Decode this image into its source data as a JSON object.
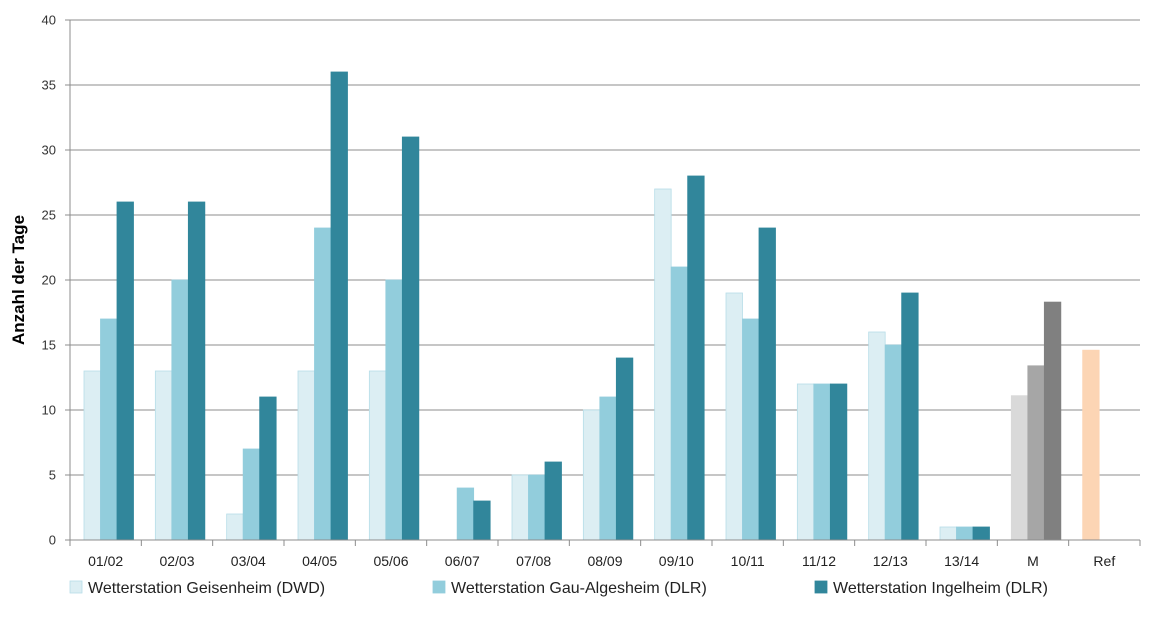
{
  "chart_data": {
    "type": "bar",
    "ylabel": "Anzahl der Tage",
    "xlabel": "",
    "ylim": [
      0,
      40
    ],
    "yticks": [
      0,
      5,
      10,
      15,
      20,
      25,
      30,
      35,
      40
    ],
    "grid": true,
    "legend_position": "bottom",
    "categories": [
      "01/02",
      "02/03",
      "03/04",
      "04/05",
      "05/06",
      "06/07",
      "07/08",
      "08/09",
      "09/10",
      "10/11",
      "11/12",
      "12/13",
      "13/14",
      "M",
      "Ref"
    ],
    "series": [
      {
        "name": "Wetterstation Geisenheim (DWD)",
        "color": "#dceef3",
        "values": [
          13,
          13,
          2,
          13,
          13,
          0,
          5,
          10,
          27,
          19,
          12,
          16,
          1,
          null,
          null
        ]
      },
      {
        "name": "Wetterstation Gau-Algesheim (DLR)",
        "color": "#92cddc",
        "values": [
          17,
          20,
          7,
          24,
          20,
          4,
          5,
          11,
          21,
          17,
          12,
          15,
          1,
          null,
          null
        ]
      },
      {
        "name": "Wetterstation Ingelheim (DLR)",
        "color": "#31869b",
        "values": [
          26,
          26,
          11,
          36,
          31,
          3,
          6,
          14,
          28,
          24,
          12,
          19,
          1,
          null,
          null
        ]
      }
    ],
    "extra_bars": [
      {
        "category": "M",
        "slot": 0,
        "value": 11.1,
        "color": "#d9d9d9"
      },
      {
        "category": "M",
        "slot": 1,
        "value": 13.4,
        "color": "#a6a6a6"
      },
      {
        "category": "M",
        "slot": 2,
        "value": 18.3,
        "color": "#808080"
      },
      {
        "category": "Ref",
        "slot": 0,
        "value": 14.6,
        "color": "#fcd5b4"
      }
    ]
  }
}
